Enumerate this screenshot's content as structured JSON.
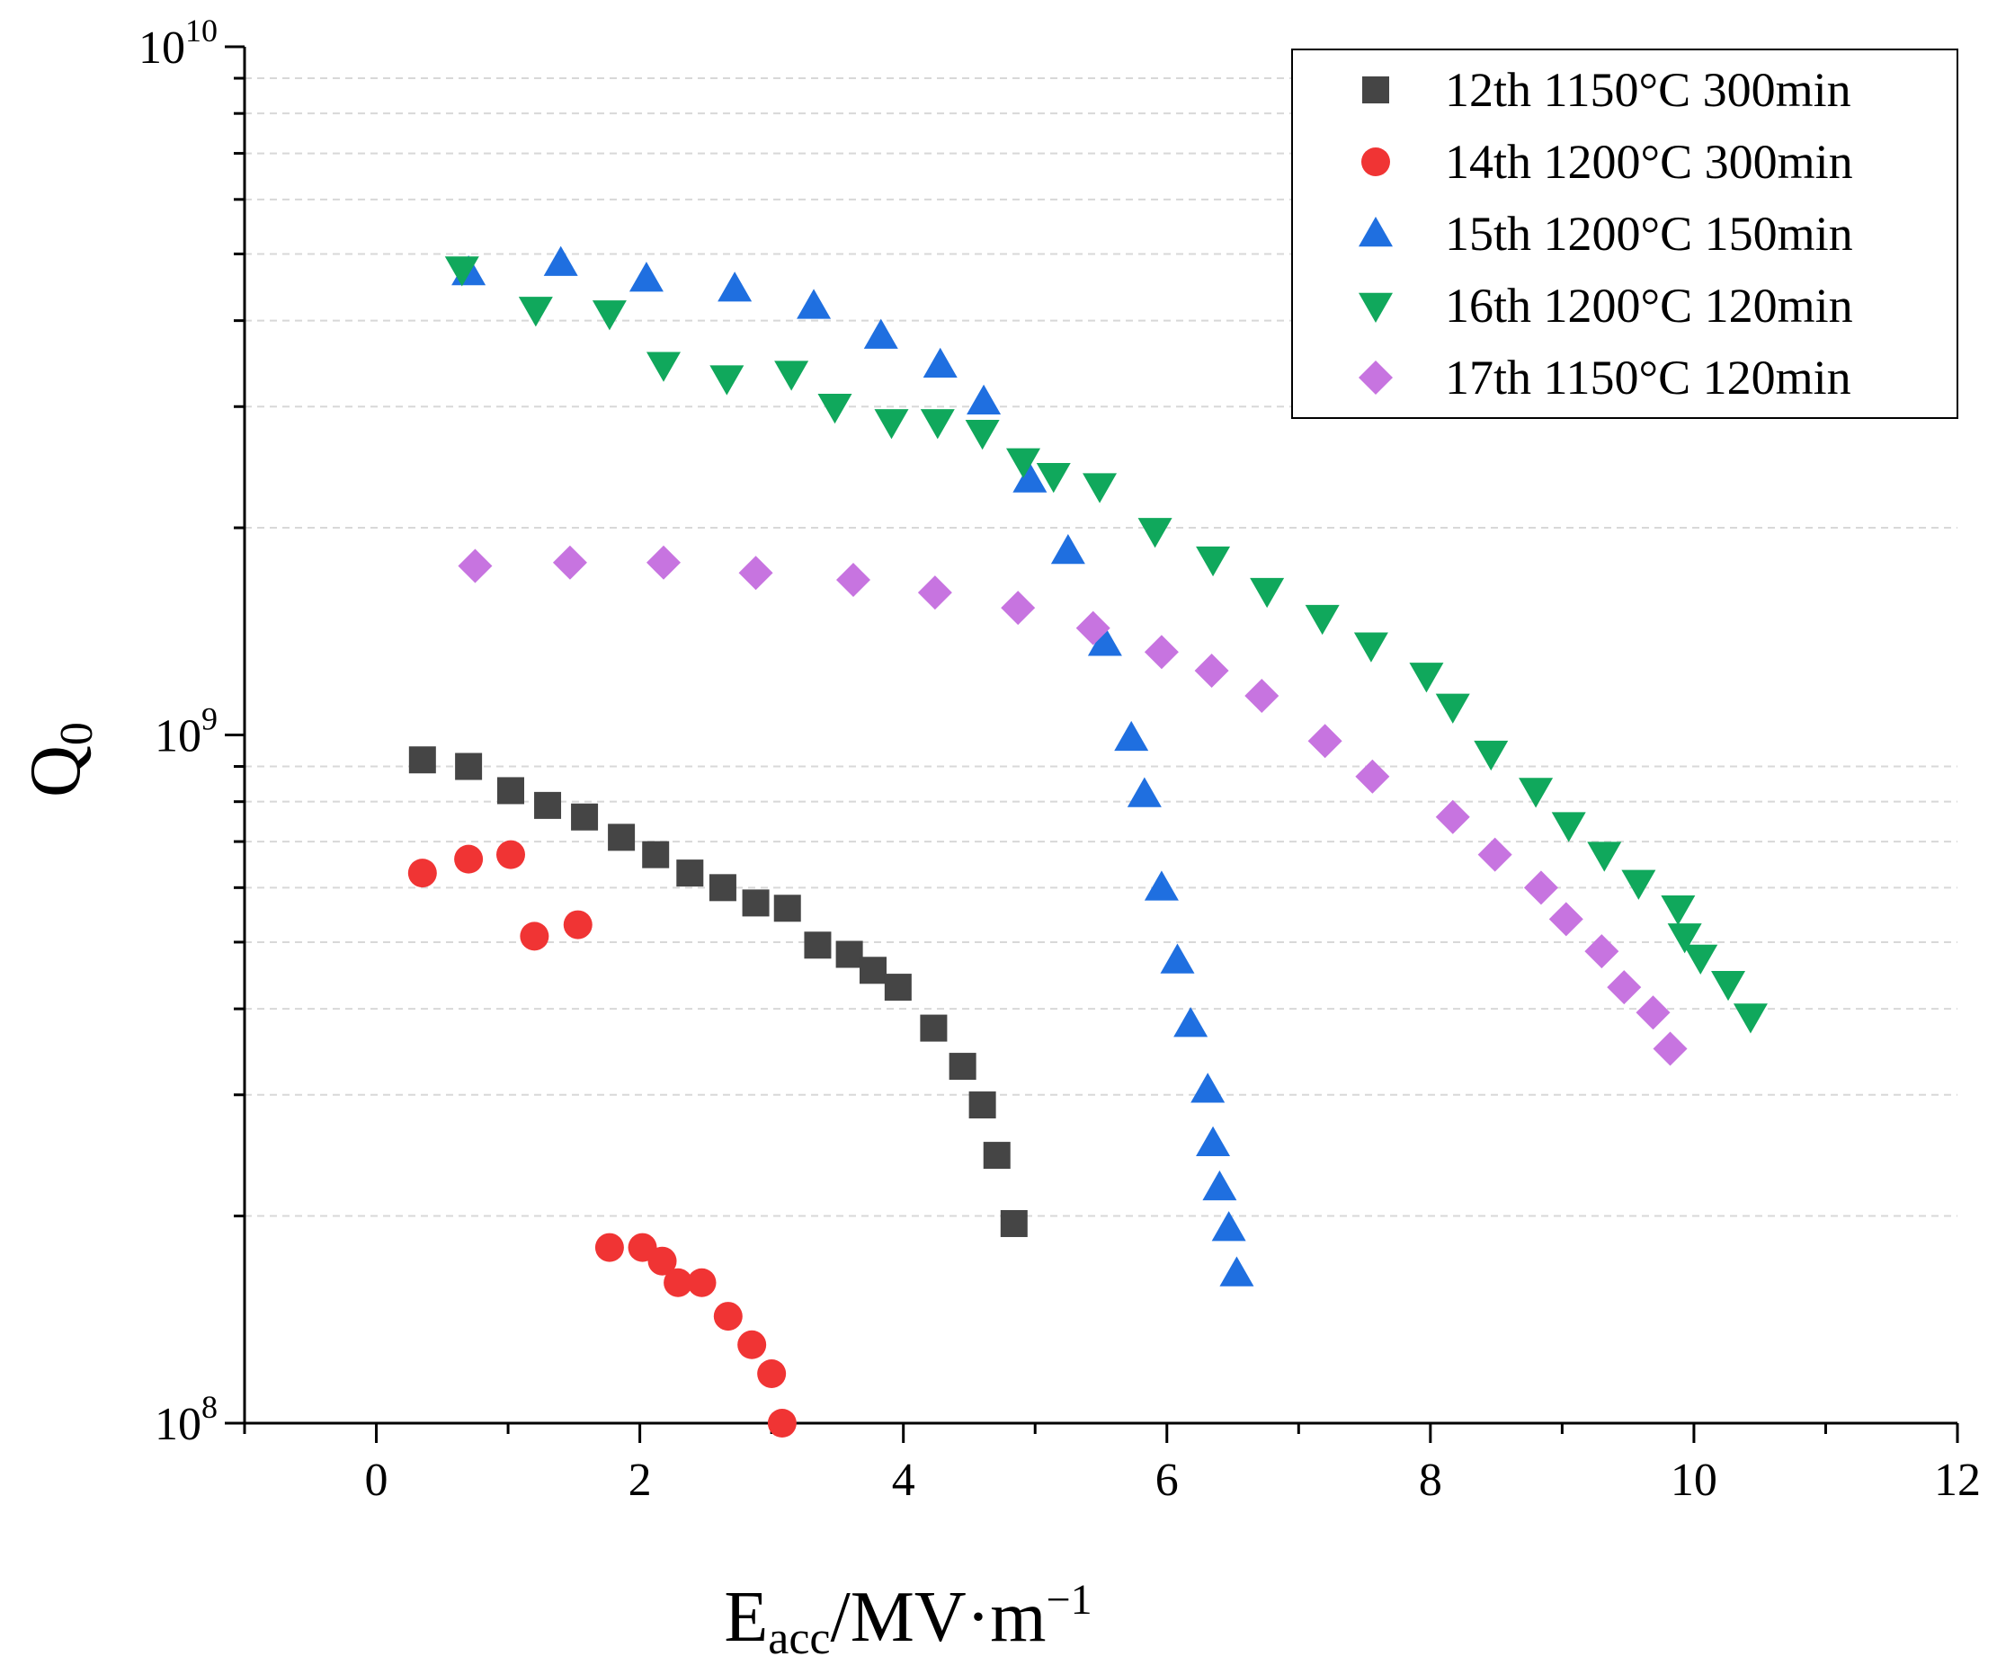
{
  "chart_data": {
    "type": "scatter",
    "xlabel": {
      "main": "E",
      "sub": "acc",
      "rest": "/MV·m",
      "sup": "−1"
    },
    "ylabel": {
      "main": "Q",
      "sub": "0"
    },
    "xlim": [
      -1,
      12
    ],
    "ylim": [
      100000000,
      10000000000
    ],
    "yscale": "log",
    "x_ticks": [
      0,
      2,
      4,
      6,
      8,
      10,
      12
    ],
    "y_ticks": [
      {
        "value": 100000000,
        "base": "10",
        "exp": "8"
      },
      {
        "value": 1000000000,
        "base": "10",
        "exp": "9"
      },
      {
        "value": 10000000000,
        "base": "10",
        "exp": "10"
      }
    ],
    "grid": "horizontal dashed at log minor ticks",
    "legend_position": "top-right",
    "series": [
      {
        "name": "12th 1150°C 300min",
        "marker": "square",
        "color": "#454545",
        "points": [
          [
            0.35,
            920000000.0
          ],
          [
            0.7,
            900000000.0
          ],
          [
            1.02,
            830000000.0
          ],
          [
            1.3,
            790000000.0
          ],
          [
            1.58,
            760000000.0
          ],
          [
            1.86,
            710000000.0
          ],
          [
            2.12,
            670000000.0
          ],
          [
            2.38,
            630000000.0
          ],
          [
            2.63,
            600000000.0
          ],
          [
            2.88,
            570000000.0
          ],
          [
            3.12,
            560000000.0
          ],
          [
            3.35,
            495000000.0
          ],
          [
            3.59,
            480000000.0
          ],
          [
            3.77,
            455000000.0
          ],
          [
            3.96,
            430000000.0
          ],
          [
            4.23,
            375000000.0
          ],
          [
            4.45,
            330000000.0
          ],
          [
            4.6,
            290000000.0
          ],
          [
            4.71,
            245000000.0
          ],
          [
            4.84,
            195000000.0
          ]
        ]
      },
      {
        "name": "14th 1200°C 300min",
        "marker": "circle",
        "color": "#f03434",
        "points": [
          [
            0.35,
            630000000.0
          ],
          [
            0.7,
            660000000.0
          ],
          [
            1.02,
            670000000.0
          ],
          [
            1.2,
            510000000.0
          ],
          [
            1.53,
            530000000.0
          ],
          [
            1.77,
            180000000.0
          ],
          [
            2.02,
            180000000.0
          ],
          [
            2.17,
            172000000.0
          ],
          [
            2.29,
            160000000.0
          ],
          [
            2.47,
            160000000.0
          ],
          [
            2.67,
            143000000.0
          ],
          [
            2.85,
            130000000.0
          ],
          [
            3.0,
            118000000.0
          ],
          [
            3.08,
            100000000.0
          ]
        ]
      },
      {
        "name": "15th 1200°C 150min",
        "marker": "triangle-up",
        "color": "#1f6fe0",
        "points": [
          [
            0.7,
            4700000000.0
          ],
          [
            1.4,
            4850000000.0
          ],
          [
            2.05,
            4600000000.0
          ],
          [
            2.72,
            4450000000.0
          ],
          [
            3.32,
            4200000000.0
          ],
          [
            3.83,
            3800000000.0
          ],
          [
            4.28,
            3450000000.0
          ],
          [
            4.61,
            3050000000.0
          ],
          [
            4.96,
            2350000000.0
          ],
          [
            5.25,
            1850000000.0
          ],
          [
            5.53,
            1360000000.0
          ],
          [
            5.73,
            990000000.0
          ],
          [
            5.83,
            820000000.0
          ],
          [
            5.96,
            600000000.0
          ],
          [
            6.08,
            470000000.0
          ],
          [
            6.18,
            380000000.0
          ],
          [
            6.31,
            305000000.0
          ],
          [
            6.35,
            255000000.0
          ],
          [
            6.4,
            220000000.0
          ],
          [
            6.47,
            192000000.0
          ],
          [
            6.53,
            165000000.0
          ]
        ]
      },
      {
        "name": "16th 1200°C 120min",
        "marker": "triangle-down",
        "color": "#10a85c",
        "points": [
          [
            0.65,
            4750000000.0
          ],
          [
            1.21,
            4150000000.0
          ],
          [
            1.77,
            4100000000.0
          ],
          [
            2.18,
            3450000000.0
          ],
          [
            2.66,
            3300000000.0
          ],
          [
            3.15,
            3350000000.0
          ],
          [
            3.48,
            3000000000.0
          ],
          [
            3.91,
            2850000000.0
          ],
          [
            4.26,
            2850000000.0
          ],
          [
            4.6,
            2750000000.0
          ],
          [
            4.91,
            2500000000.0
          ],
          [
            5.14,
            2380000000.0
          ],
          [
            5.49,
            2300000000.0
          ],
          [
            5.91,
            1980000000.0
          ],
          [
            6.35,
            1800000000.0
          ],
          [
            6.76,
            1620000000.0
          ],
          [
            7.18,
            1480000000.0
          ],
          [
            7.55,
            1350000000.0
          ],
          [
            7.97,
            1220000000.0
          ],
          [
            8.17,
            1100000000.0
          ],
          [
            8.46,
            940000000.0
          ],
          [
            8.8,
            830000000.0
          ],
          [
            9.05,
            740000000.0
          ],
          [
            9.32,
            670000000.0
          ],
          [
            9.58,
            610000000.0
          ],
          [
            9.88,
            560000000.0
          ],
          [
            9.93,
            510000000.0
          ],
          [
            10.05,
            475000000.0
          ],
          [
            10.26,
            435000000.0
          ],
          [
            10.43,
            390000000.0
          ]
        ]
      },
      {
        "name": "17th 1150°C 120min",
        "marker": "diamond",
        "color": "#c774e0",
        "points": [
          [
            0.75,
            1760000000.0
          ],
          [
            1.47,
            1780000000.0
          ],
          [
            2.18,
            1780000000.0
          ],
          [
            2.88,
            1720000000.0
          ],
          [
            3.62,
            1680000000.0
          ],
          [
            4.24,
            1610000000.0
          ],
          [
            4.87,
            1530000000.0
          ],
          [
            5.44,
            1430000000.0
          ],
          [
            5.96,
            1320000000.0
          ],
          [
            6.34,
            1240000000.0
          ],
          [
            6.72,
            1140000000.0
          ],
          [
            7.2,
            980000000.0
          ],
          [
            7.56,
            870000000.0
          ],
          [
            8.17,
            760000000.0
          ],
          [
            8.49,
            670000000.0
          ],
          [
            8.84,
            600000000.0
          ],
          [
            9.03,
            540000000.0
          ],
          [
            9.3,
            485000000.0
          ],
          [
            9.47,
            430000000.0
          ],
          [
            9.69,
            395000000.0
          ],
          [
            9.82,
            350000000.0
          ]
        ]
      }
    ]
  }
}
